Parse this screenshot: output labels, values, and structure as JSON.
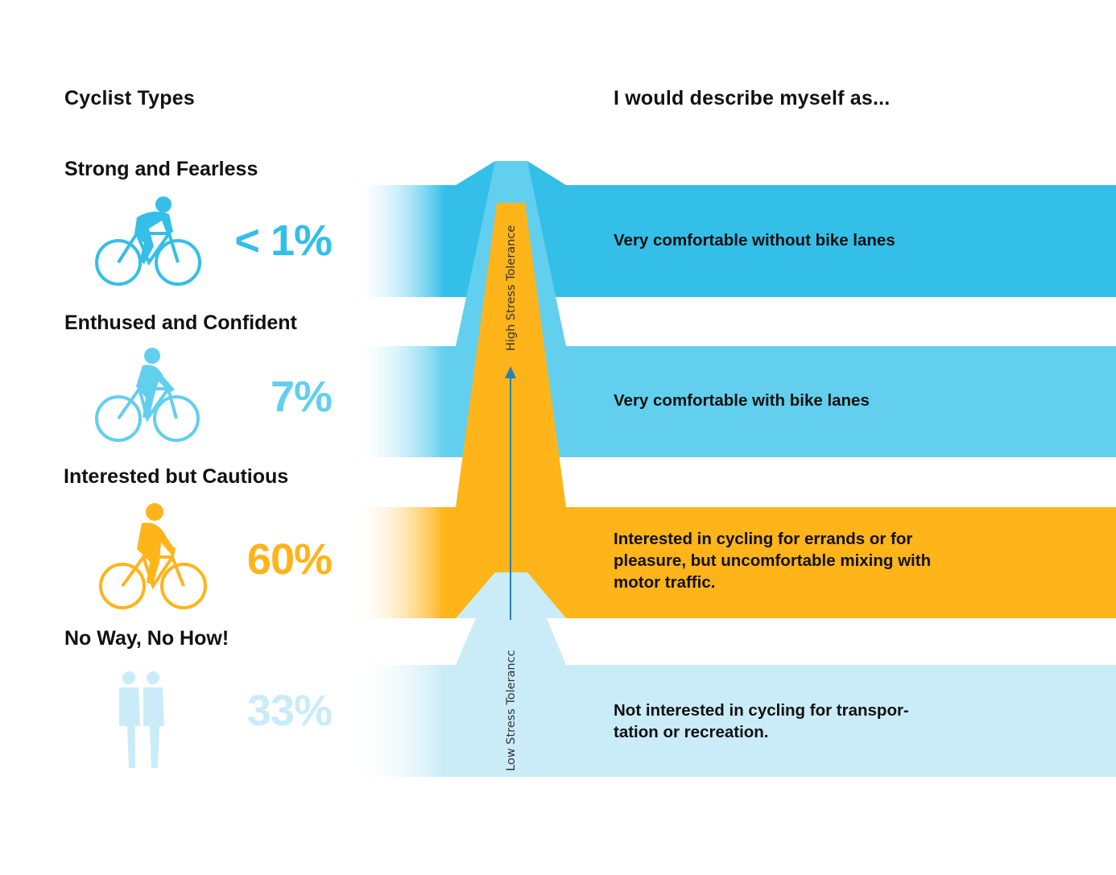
{
  "header": {
    "left_title": "Cyclist Types",
    "right_title": "I would describe myself as..."
  },
  "types": [
    {
      "name": "Strong and Fearless",
      "percent": "< 1%",
      "share_pct": 1,
      "color": "#33BFE8",
      "icon": "cyclist-racer-icon",
      "description": "Very comfortable without bike lanes"
    },
    {
      "name": "Enthused and Confident",
      "percent": "7%",
      "share_pct": 7,
      "color": "#62CFEE",
      "icon": "cyclist-commuter-icon",
      "description": "Very comfortable with bike lanes"
    },
    {
      "name": "Interested but Cautious",
      "percent": "60%",
      "share_pct": 60,
      "color": "#FFB41A",
      "icon": "cyclist-casual-icon",
      "description_lines": [
        "Interested in cycling for errands or for",
        "pleasure, but uncomfortable mixing with",
        "motor traffic."
      ]
    },
    {
      "name": "No Way, No How!",
      "percent": "33%",
      "share_pct": 33,
      "color": "#C9ECF8",
      "icon": "pedestrians-icon",
      "description_lines": [
        "Not interested in cycling for transpor-",
        "tation or recreation."
      ]
    }
  ],
  "axis": {
    "high_label": "High Stress Tolerance",
    "low_label": "Low Stress Tolerancc"
  }
}
